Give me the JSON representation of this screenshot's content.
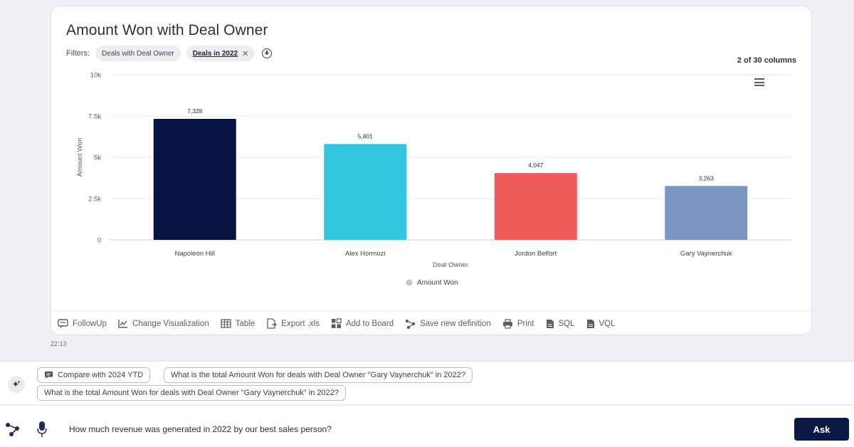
{
  "card": {
    "title": "Amount Won with Deal Owner",
    "filters_label": "Filters:",
    "filters": [
      {
        "label": "Deals with Deal Owner",
        "active": false
      },
      {
        "label": "Deals in 2022",
        "active": true
      }
    ],
    "columns_count": "2 of 30 columns"
  },
  "chart_data": {
    "type": "bar",
    "categories": [
      "Napoleon Hill",
      "Alex Hormozi",
      "Jordon Belfort",
      "Gary Vaynerchuk"
    ],
    "values": [
      7328,
      5801,
      4047,
      3263
    ],
    "value_labels": [
      "7,328",
      "5,801",
      "4,047",
      "3,263"
    ],
    "colors": [
      "#071342",
      "#33c4de",
      "#ef5b5b",
      "#7a96be"
    ],
    "xlabel": "Deal Owner",
    "ylabel": "Amount Won",
    "ylim": [
      0,
      10000
    ],
    "yticks": [
      0,
      2500,
      5000,
      7500,
      10000
    ],
    "ytick_labels": [
      "0",
      "2.5k",
      "5k",
      "7.5k",
      "10k"
    ],
    "legend": {
      "label": "Amount Won",
      "placement": "bottom"
    },
    "grid": true
  },
  "toolbar": {
    "followup": "FollowUp",
    "change_viz": "Change Visualization",
    "table": "Table",
    "export": "Export .xls",
    "add_board": "Add to Board",
    "save_def": "Save new definition",
    "print": "Print",
    "sql": "SQL",
    "vql": "VQL"
  },
  "timestamp": "22:13",
  "suggestions": {
    "compare": "Compare with 2024 YTD",
    "q1": "What is the total Amount Won for deals with Deal Owner \"Gary Vaynerchuk\" in 2022?",
    "q2": "What is the total Amount Won for deals with Deal Owner \"Gary Vaynerchuk\" in 2022?"
  },
  "input": {
    "query": "How much revenue was generated in 2022 by our best sales person?",
    "ask_label": "Ask"
  }
}
